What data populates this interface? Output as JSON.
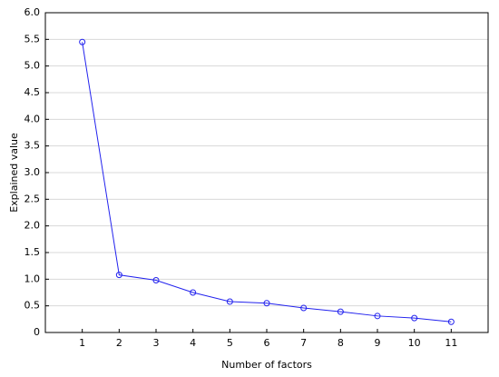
{
  "chart_data": {
    "type": "line",
    "x_label": "Number of factors",
    "y_label": "Explained value",
    "x": [
      1,
      2,
      3,
      4,
      5,
      6,
      7,
      8,
      9,
      10,
      11
    ],
    "series": [
      {
        "color": "#2222ee",
        "values": [
          5.45,
          1.08,
          0.98,
          0.75,
          0.58,
          0.55,
          0.46,
          0.39,
          0.31,
          0.27,
          0.2
        ]
      }
    ],
    "xlim": [
      0,
      12
    ],
    "xticks": [
      1,
      2,
      3,
      4,
      5,
      6,
      7,
      8,
      9,
      10,
      11
    ],
    "ylim": [
      0,
      6
    ],
    "yticks": [
      0,
      0.5,
      {
        "value": 1,
        "label": "1.0"
      },
      1.5,
      {
        "value": 2,
        "label": "2.0"
      },
      2.5,
      {
        "value": 3,
        "label": "3.0"
      },
      3.5,
      {
        "value": 4,
        "label": "4.0"
      },
      4.5,
      {
        "value": 5,
        "label": "5.0"
      },
      5.5,
      {
        "value": 6,
        "label": "6.0"
      }
    ],
    "grid": true
  }
}
